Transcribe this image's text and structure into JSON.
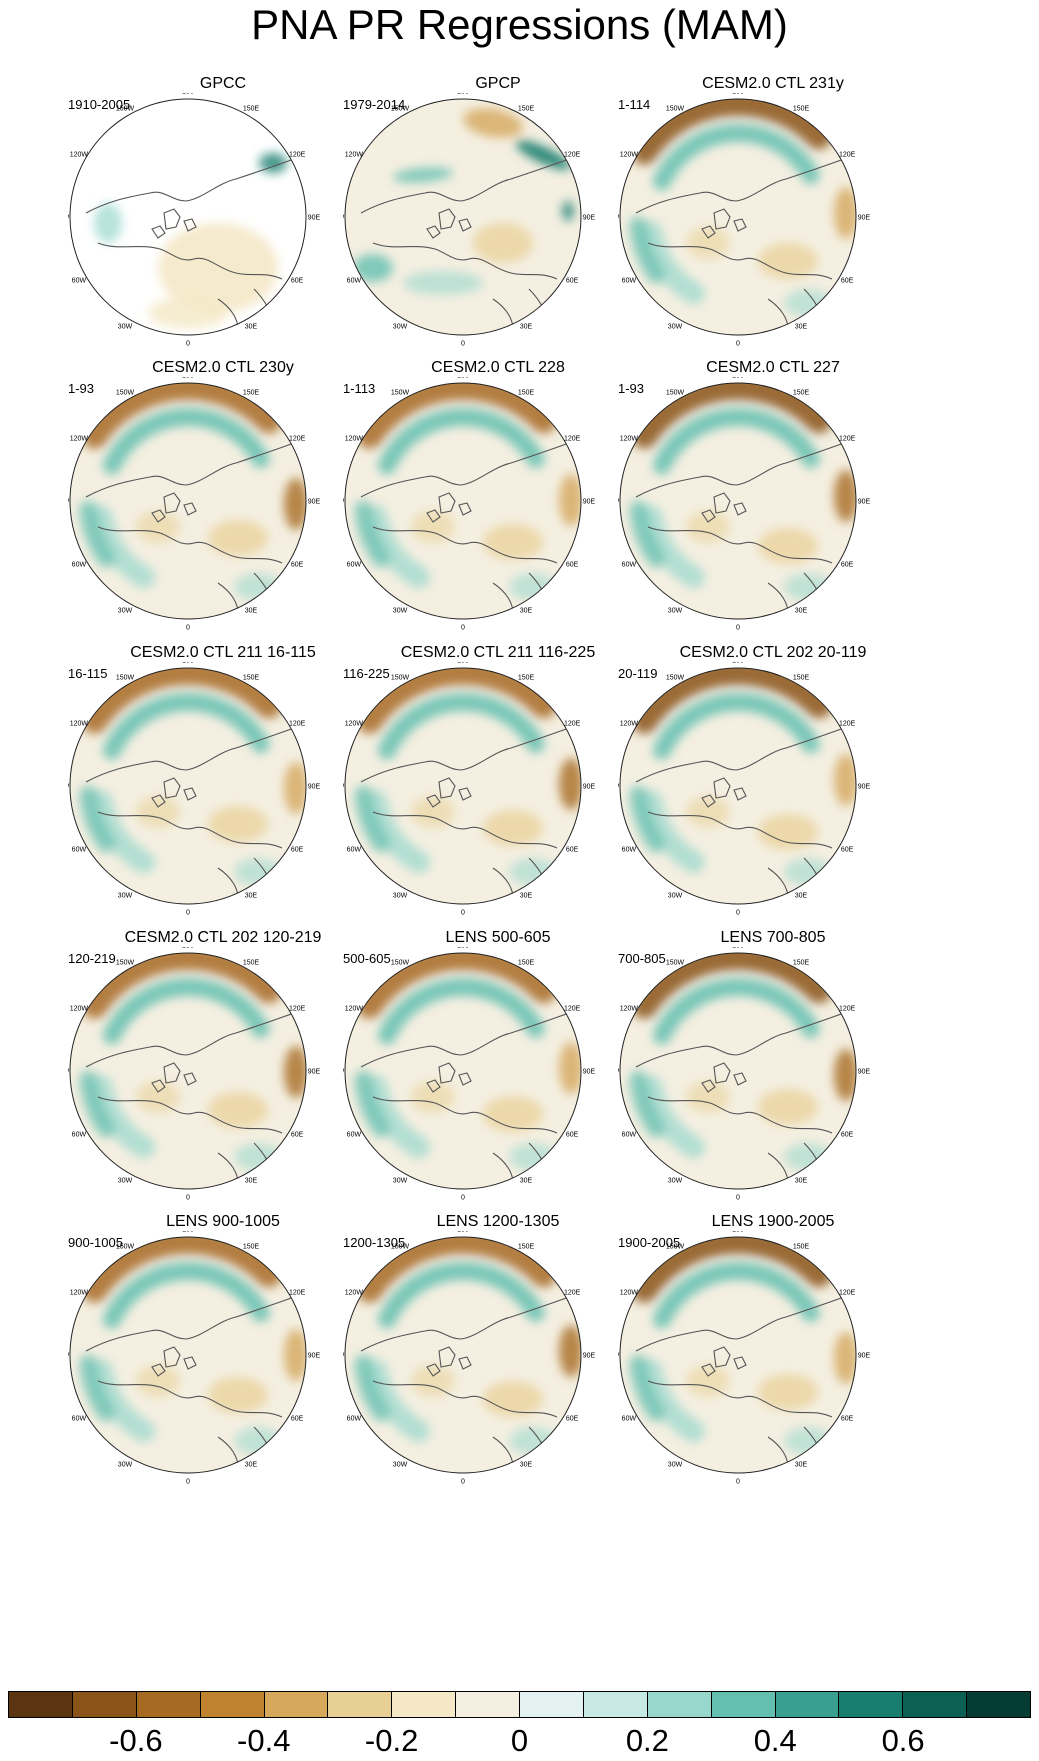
{
  "title": "PNA PR Regressions (MAM)",
  "lon_labels": [
    "180",
    "150E",
    "120E",
    "90E",
    "60E",
    "30E",
    "0",
    "30W",
    "60W",
    "90W",
    "120W",
    "150W"
  ],
  "panels": [
    {
      "title": "GPCC",
      "period": "1910-2005",
      "style": "gpcc"
    },
    {
      "title": "GPCP",
      "period": "1979-2014",
      "style": "obs"
    },
    {
      "title": "CESM2.0 CTL 231y",
      "period": "1-114",
      "style": "model"
    },
    {
      "title": "CESM2.0 CTL 230y",
      "period": "1-93",
      "style": "model"
    },
    {
      "title": "CESM2.0 CTL 228",
      "period": "1-113",
      "style": "model"
    },
    {
      "title": "CESM2.0 CTL 227",
      "period": "1-93",
      "style": "model"
    },
    {
      "title": "CESM2.0 CTL 211 16-115",
      "period": "16-115",
      "style": "model"
    },
    {
      "title": "CESM2.0 CTL 211 116-225",
      "period": "116-225",
      "style": "model"
    },
    {
      "title": "CESM2.0 CTL 202 20-119",
      "period": "20-119",
      "style": "model"
    },
    {
      "title": "CESM2.0 CTL 202 120-219",
      "period": "120-219",
      "style": "model"
    },
    {
      "title": "LENS 500-605",
      "period": "500-605",
      "style": "model"
    },
    {
      "title": "LENS 700-805",
      "period": "700-805",
      "style": "model"
    },
    {
      "title": "LENS 900-1005",
      "period": "900-1005",
      "style": "model"
    },
    {
      "title": "LENS 1200-1305",
      "period": "1200-1305",
      "style": "model"
    },
    {
      "title": "LENS 1900-2005",
      "period": "1900-2005",
      "style": "model"
    }
  ],
  "colorbar": {
    "colors": [
      "#5a3510",
      "#8a5317",
      "#a76a23",
      "#c0832f",
      "#d5a85c",
      "#e8cf93",
      "#f4e8c6",
      "#f4efe1",
      "#e3f2f0",
      "#c6e9e4",
      "#97d7cc",
      "#64bfb0",
      "#389f91",
      "#177e70",
      "#0b5f53",
      "#053c33"
    ],
    "tick_labels": [
      {
        "text": "-0.6",
        "value": -0.6
      },
      {
        "text": "-0.4",
        "value": -0.4
      },
      {
        "text": "-0.2",
        "value": -0.2
      },
      {
        "text": "0",
        "value": 0
      },
      {
        "text": "0.2",
        "value": 0.2
      },
      {
        "text": "0.4",
        "value": 0.4
      },
      {
        "text": "0.6",
        "value": 0.6
      }
    ],
    "range": [
      -0.8,
      0.8
    ]
  }
}
